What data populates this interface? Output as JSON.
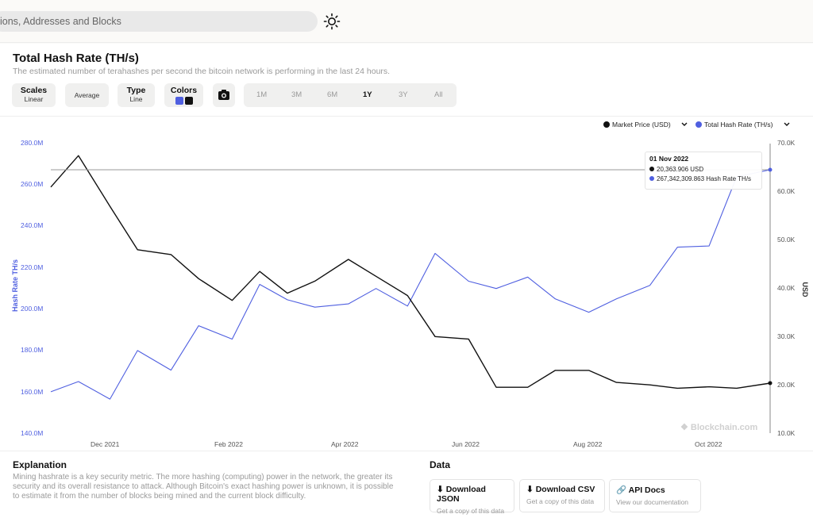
{
  "search": {
    "placeholder": "ions, Addresses and Blocks"
  },
  "header": {
    "title": "Total Hash Rate (TH/s)",
    "subtitle": "The estimated number of terahashes per second the bitcoin network is performing in the last 24 hours."
  },
  "controls": {
    "scales": {
      "label": "Scales",
      "value": "Linear"
    },
    "average": {
      "label": "Average"
    },
    "type": {
      "label": "Type",
      "value": "Line"
    },
    "colors": {
      "label": "Colors",
      "swatches": [
        "#4f5fe0",
        "#111111"
      ]
    },
    "camera_icon": "camera-icon",
    "ranges": [
      "1M",
      "3M",
      "6M",
      "1Y",
      "3Y",
      "All"
    ],
    "active_range": "1Y"
  },
  "legend": [
    {
      "label": "Market Price (USD)",
      "color": "#111111"
    },
    {
      "label": "Total Hash Rate (TH/s)",
      "color": "#4f5fe0"
    }
  ],
  "tooltip": {
    "date": "01 Nov 2022",
    "price": "20,363.906 USD",
    "hashrate": "267,342,309.863 Hash Rate TH/s"
  },
  "watermark": "Blockchain.com",
  "chart_data": {
    "type": "line",
    "x_tick_labels": [
      "Dec 2021",
      "Feb 2022",
      "Apr 2022",
      "Jun 2022",
      "Aug 2022",
      "Oct 2022"
    ],
    "ylabel_left": "Hash Rate TH/s",
    "ylabel_right": "USD",
    "yticks_left": [
      "280.0M",
      "260.0M",
      "240.0M",
      "220.0M",
      "200.0M",
      "180.0M",
      "160.0M",
      "140.0M"
    ],
    "yticks_right": [
      "70.0K",
      "60.0K",
      "50.0K",
      "40.0K",
      "30.0K",
      "20.0K",
      "10.0K"
    ],
    "ylim_left": [
      140000000,
      280000000
    ],
    "ylim_right": [
      10000,
      70000
    ],
    "x": [
      "2021-11-01",
      "2021-11-15",
      "2021-12-01",
      "2021-12-15",
      "2022-01-01",
      "2022-01-15",
      "2022-02-01",
      "2022-02-15",
      "2022-03-01",
      "2022-03-15",
      "2022-04-01",
      "2022-04-15",
      "2022-05-01",
      "2022-05-15",
      "2022-06-01",
      "2022-06-15",
      "2022-07-01",
      "2022-07-15",
      "2022-08-01",
      "2022-08-15",
      "2022-09-01",
      "2022-09-15",
      "2022-10-01",
      "2022-10-15",
      "2022-11-01"
    ],
    "series": [
      {
        "name": "Total Hash Rate (TH/s)",
        "axis": "left",
        "color": "#4f5fe0",
        "values": [
          160000000,
          163000000,
          158000000,
          178000000,
          172000000,
          190000000,
          187000000,
          210000000,
          206000000,
          199000000,
          204000000,
          208000000,
          203000000,
          225000000,
          215000000,
          208000000,
          217000000,
          203000000,
          200000000,
          203000000,
          213000000,
          228000000,
          232000000,
          262000000,
          267342309
        ]
      },
      {
        "name": "Market Price (USD)",
        "axis": "right",
        "color": "#111111",
        "values": [
          61000,
          67500,
          57000,
          48000,
          47000,
          42000,
          37500,
          43500,
          39000,
          41500,
          46000,
          42500,
          38500,
          30000,
          29500,
          19500,
          19500,
          23000,
          23000,
          20500,
          20000,
          19300,
          19600,
          19300,
          20364
        ]
      }
    ],
    "grid": false,
    "legend": "top-right"
  },
  "explanation": {
    "title": "Explanation",
    "text": "Mining hashrate is a key security metric. The more hashing (computing) power in the network, the greater its security and its overall resistance to attack. Although Bitcoin's exact hashing power is unknown, it is possible to estimate it from the number of blocks being mined and the current block difficulty."
  },
  "data_section": {
    "title": "Data",
    "buttons": [
      {
        "label": "Download JSON",
        "sub": "Get a copy of this data",
        "icon": "download-icon"
      },
      {
        "label": "Download CSV",
        "sub": "Get a copy of this data",
        "icon": "download-icon"
      },
      {
        "label": "API Docs",
        "sub": "View our documentation",
        "icon": "link-icon"
      }
    ]
  }
}
